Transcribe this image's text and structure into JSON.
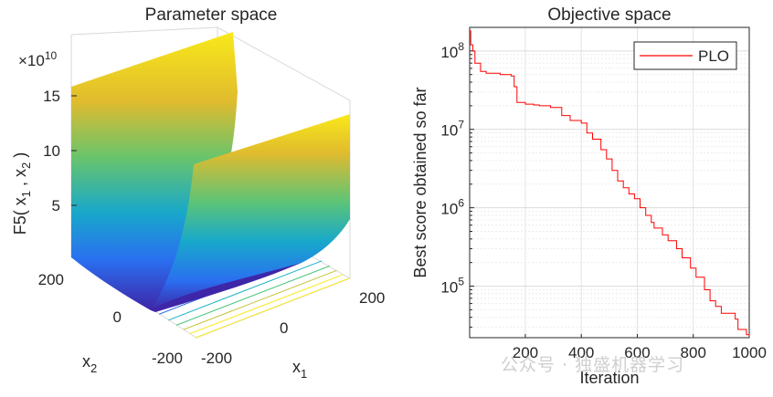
{
  "chart_data": [
    {
      "type": "surface",
      "title": "Parameter space",
      "xlabel": "x",
      "xlabel_sub": "1",
      "ylabel": "x",
      "ylabel_sub": "2",
      "zlabel_parts": [
        "F5( x",
        "1",
        " , x",
        "2",
        " )"
      ],
      "z_multiplier": "×10",
      "z_multiplier_exp": "10",
      "z_ticks": [
        "5",
        "10",
        "15"
      ],
      "x_ticks": [
        "-200",
        "0",
        "200"
      ],
      "y_ticks": [
        "-200",
        "0",
        "200"
      ],
      "xlim": [
        -200,
        200
      ],
      "ylim": [
        -200,
        200
      ],
      "zlim": [
        0,
        160000000000.0
      ],
      "colormap": [
        "#3e26a8",
        "#2a6ff0",
        "#19b2c7",
        "#4cc67e",
        "#c4c232",
        "#f9e919"
      ]
    },
    {
      "type": "line",
      "title": "Objective space",
      "xlabel": "Iteration",
      "ylabel": "Best score obtained so far",
      "yscale": "log",
      "xlim": [
        1,
        1000
      ],
      "ylim": [
        22000,
        200000000
      ],
      "x_ticks": [
        "200",
        "400",
        "600",
        "800",
        "1000"
      ],
      "y_ticks": [
        {
          "base": "10",
          "exp": "5"
        },
        {
          "base": "10",
          "exp": "6"
        },
        {
          "base": "10",
          "exp": "7"
        },
        {
          "base": "10",
          "exp": "8"
        }
      ],
      "grid": true,
      "legend_position": "top-right",
      "series": [
        {
          "name": "PLO",
          "color": "#ff0000",
          "x": [
            1,
            5,
            12,
            20,
            40,
            60,
            110,
            150,
            160,
            170,
            200,
            230,
            250,
            290,
            330,
            360,
            400,
            420,
            440,
            470,
            490,
            510,
            530,
            550,
            570,
            590,
            610,
            630,
            650,
            660,
            690,
            710,
            740,
            760,
            790,
            810,
            840,
            860,
            880,
            900,
            950,
            960,
            990,
            1000
          ],
          "y": [
            180000000,
            120000000,
            100000000,
            70000000,
            55000000,
            52000000,
            50000000,
            48000000,
            35000000,
            22000000,
            21000000,
            20500000,
            20000000,
            19000000,
            15000000,
            13000000,
            12000000,
            9000000,
            7500000,
            5500000,
            4200000,
            3000000,
            2200000,
            1800000,
            1500000,
            1300000,
            1000000,
            800000,
            650000,
            550000,
            450000,
            380000,
            300000,
            230000,
            170000,
            130000,
            90000,
            65000,
            55000,
            45000,
            38000,
            28000,
            24000,
            23000
          ]
        }
      ]
    }
  ],
  "watermark": "公众号 · 独盛机器学习"
}
